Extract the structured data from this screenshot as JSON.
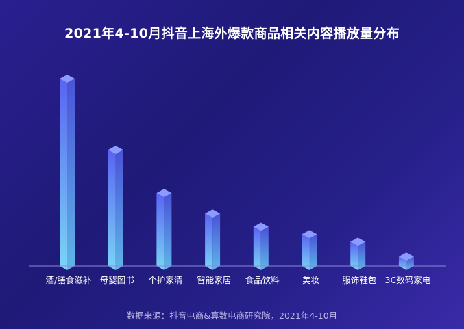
{
  "chart_data": {
    "type": "bar",
    "title": "2021年4-10月抖音上海外爆款商品相关内容播放量分布",
    "categories": [
      "酒/膳食滋补",
      "母婴图书",
      "个护家清",
      "智能家居",
      "食品饮料",
      "美妆",
      "服饰鞋包",
      "3C数码家电"
    ],
    "values": [
      100,
      62,
      39,
      28,
      21,
      17,
      13,
      5
    ],
    "ylim": [
      0,
      100
    ],
    "grid": false,
    "legend": "none",
    "colors": {
      "bar_top": "#5b6ff5",
      "bar_bottom": "#79d6f6",
      "bar_cap": "#8c9bff",
      "background": "#231c83"
    }
  },
  "source": "数据来源：抖音电商&算数电商研究院，2021年4-10月"
}
